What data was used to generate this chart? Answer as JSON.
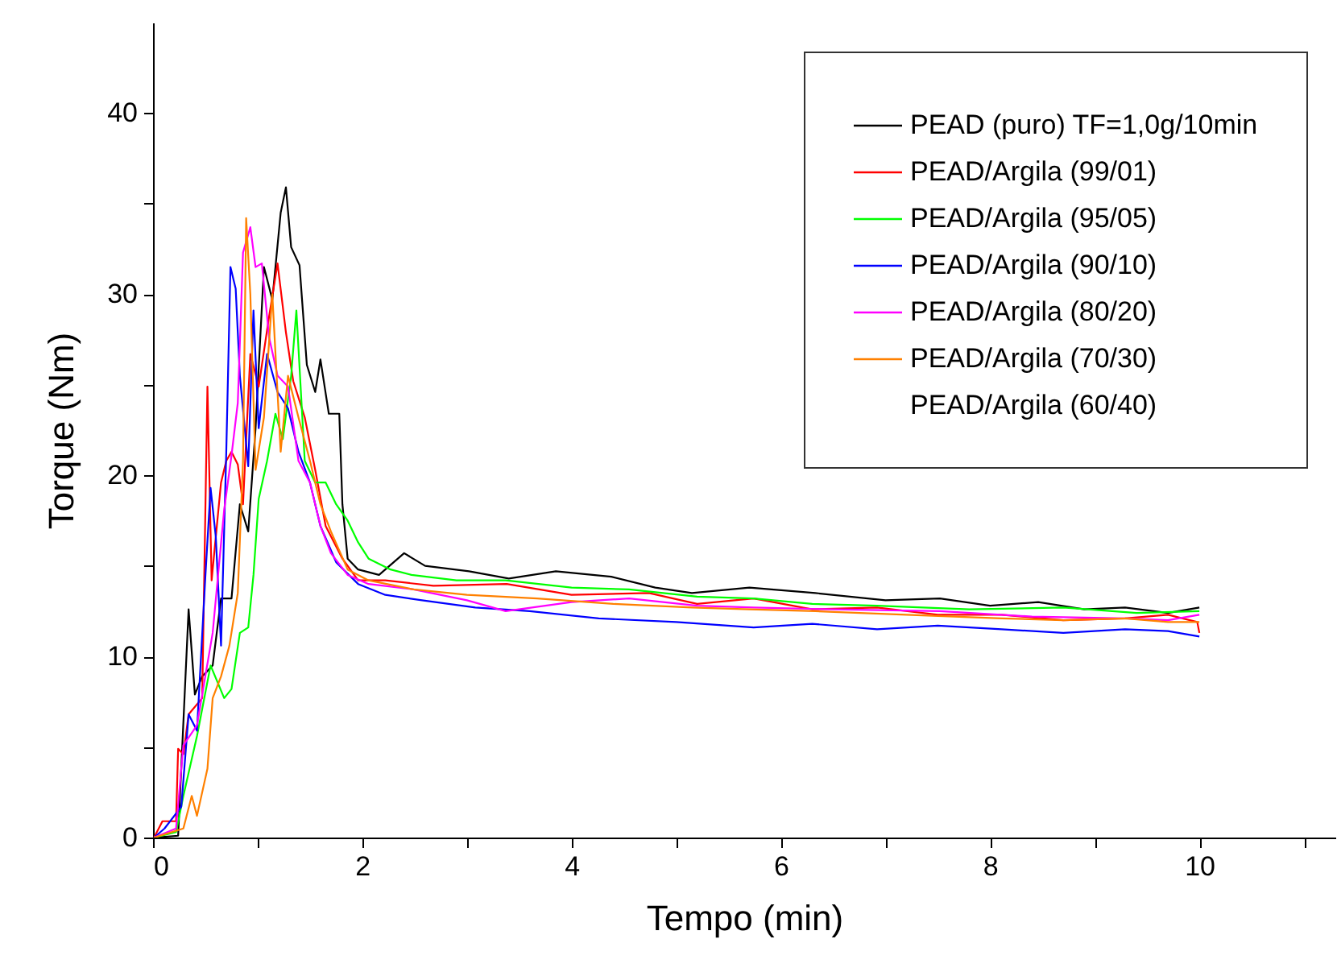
{
  "chart_data": {
    "type": "line",
    "xlabel": "Tempo (min)",
    "ylabel": "Torque (Nm)",
    "xlim": [
      0,
      11.3
    ],
    "ylim": [
      0,
      45
    ],
    "xticks": [
      0,
      {
        "value": 1,
        "label": null
      },
      2,
      {
        "value": 3,
        "label": null
      },
      4,
      {
        "value": 5,
        "label": null
      },
      6,
      {
        "value": 7,
        "label": null
      },
      8,
      {
        "value": 9,
        "label": null
      },
      10,
      {
        "value": 11,
        "label": null
      }
    ],
    "yticks": [
      0,
      {
        "value": 5,
        "label": null
      },
      10,
      {
        "value": 15,
        "label": null
      },
      20,
      {
        "value": 25,
        "label": null
      },
      30,
      {
        "value": 35,
        "label": null
      },
      40
    ],
    "grid": false,
    "legend": "top right",
    "line_style": "solid",
    "marker": "none",
    "series": [
      {
        "name": "PEAD (puro) TF=1,0g/10min",
        "color": "#000000",
        "x": [
          0.01,
          0.24,
          0.34,
          0.4,
          0.47,
          0.57,
          0.65,
          0.75,
          0.83,
          0.91,
          0.98,
          1.06,
          1.14,
          1.22,
          1.27,
          1.32,
          1.4,
          1.47,
          1.55,
          1.6,
          1.68,
          1.78,
          1.81,
          1.86,
          1.96,
          2.16,
          2.4,
          2.6,
          3.02,
          3.4,
          3.85,
          4.38,
          4.8,
          5.15,
          5.7,
          6.33,
          7.0,
          7.52,
          8.0,
          8.46,
          8.9,
          9.29,
          9.7,
          10.0
        ],
        "values": [
          0,
          0.1,
          12.6,
          7.9,
          8.9,
          9.5,
          13.2,
          13.2,
          18.4,
          16.9,
          22.6,
          31.5,
          29.7,
          34.5,
          35.9,
          32.6,
          31.6,
          26.1,
          24.6,
          26.4,
          23.4,
          23.4,
          18.4,
          15.4,
          14.8,
          14.5,
          15.7,
          15.0,
          14.7,
          14.3,
          14.7,
          14.4,
          13.8,
          13.5,
          13.8,
          13.5,
          13.1,
          13.2,
          12.8,
          13.0,
          12.6,
          12.7,
          12.4,
          12.7
        ]
      },
      {
        "name": "PEAD/Argila (99/01)",
        "color": "#ff0000",
        "x": [
          0.01,
          0.09,
          0.22,
          0.24,
          0.29,
          0.34,
          0.47,
          0.52,
          0.56,
          0.65,
          0.7,
          0.75,
          0.81,
          0.86,
          0.93,
          1.01,
          1.11,
          1.19,
          1.27,
          1.34,
          1.45,
          1.55,
          1.65,
          1.81,
          1.96,
          2.22,
          2.68,
          3.38,
          4.0,
          4.74,
          5.2,
          5.74,
          6.3,
          6.92,
          7.5,
          8.11,
          8.7,
          9.29,
          9.7,
          9.98,
          10.0
        ],
        "values": [
          0,
          0.9,
          0.9,
          4.9,
          4.6,
          6.8,
          7.7,
          24.9,
          14.2,
          19.6,
          20.8,
          21.3,
          20.6,
          18.4,
          26.7,
          24.9,
          28.8,
          31.7,
          27.9,
          25.2,
          23.2,
          20.3,
          17.2,
          15.4,
          14.2,
          14.2,
          13.9,
          14.0,
          13.4,
          13.5,
          12.9,
          13.2,
          12.6,
          12.7,
          12.3,
          12.3,
          12.0,
          12.1,
          12.3,
          11.9,
          11.3
        ]
      },
      {
        "name": "PEAD/Argila (95/05)",
        "color": "#00ff00",
        "x": [
          0.01,
          0.22,
          0.29,
          0.42,
          0.55,
          0.68,
          0.75,
          0.83,
          0.91,
          0.96,
          1.01,
          1.09,
          1.17,
          1.24,
          1.32,
          1.37,
          1.45,
          1.55,
          1.65,
          1.75,
          1.86,
          1.96,
          2.06,
          2.27,
          2.47,
          2.9,
          3.37,
          4.0,
          4.55,
          5.2,
          5.74,
          6.3,
          6.92,
          7.8,
          8.7,
          9.4,
          10.0
        ],
        "values": [
          0,
          0.3,
          2.3,
          5.6,
          9.5,
          7.7,
          8.2,
          11.3,
          11.6,
          14.5,
          18.7,
          20.8,
          23.4,
          22.0,
          25.5,
          29.1,
          20.8,
          19.6,
          19.6,
          18.4,
          17.5,
          16.3,
          15.4,
          14.8,
          14.5,
          14.2,
          14.2,
          13.8,
          13.7,
          13.3,
          13.2,
          12.9,
          12.8,
          12.6,
          12.7,
          12.4,
          12.5
        ]
      },
      {
        "name": "PEAD/Argila (90/10)",
        "color": "#0000ff",
        "x": [
          0.01,
          0.11,
          0.27,
          0.34,
          0.42,
          0.5,
          0.55,
          0.6,
          0.65,
          0.7,
          0.74,
          0.79,
          0.83,
          0.91,
          0.96,
          1.01,
          1.09,
          1.19,
          1.29,
          1.39,
          1.5,
          1.6,
          1.75,
          1.96,
          2.22,
          2.57,
          3.08,
          3.6,
          4.26,
          5.0,
          5.74,
          6.3,
          6.92,
          7.5,
          8.11,
          8.7,
          9.29,
          9.7,
          10.0
        ],
        "values": [
          0,
          0.5,
          1.7,
          6.8,
          5.9,
          14.4,
          19.3,
          16.6,
          10.6,
          21.3,
          31.5,
          30.3,
          25.5,
          20.5,
          29.1,
          22.6,
          26.7,
          24.6,
          23.7,
          21.3,
          19.6,
          17.2,
          15.2,
          14.0,
          13.4,
          13.1,
          12.7,
          12.5,
          12.1,
          11.9,
          11.6,
          11.8,
          11.5,
          11.7,
          11.5,
          11.3,
          11.5,
          11.4,
          11.1
        ]
      },
      {
        "name": "PEAD/Argila (80/20)",
        "color": "#ff00ff",
        "x": [
          0.01,
          0.22,
          0.29,
          0.42,
          0.57,
          0.68,
          0.75,
          0.81,
          0.86,
          0.93,
          0.98,
          1.04,
          1.11,
          1.19,
          1.29,
          1.39,
          1.5,
          1.6,
          1.7,
          1.86,
          2.06,
          2.49,
          3.0,
          3.37,
          4.0,
          4.55,
          5.2,
          5.74,
          6.5,
          7.52,
          8.4,
          9.29,
          9.7,
          10.0
        ],
        "values": [
          0,
          0.5,
          5.1,
          6.2,
          11.3,
          18.1,
          21.1,
          24.0,
          32.3,
          33.7,
          31.5,
          31.7,
          27.6,
          25.5,
          24.9,
          20.8,
          19.6,
          17.2,
          15.7,
          14.5,
          14.0,
          13.7,
          13.1,
          12.5,
          13.0,
          13.2,
          12.8,
          12.7,
          12.6,
          12.5,
          12.2,
          12.1,
          12.0,
          12.3
        ]
      },
      {
        "name": "PEAD/Argila (70/30)",
        "color": "#ff8000",
        "x": [
          0.01,
          0.29,
          0.37,
          0.42,
          0.52,
          0.57,
          0.65,
          0.73,
          0.81,
          0.86,
          0.89,
          0.93,
          0.98,
          1.06,
          1.14,
          1.22,
          1.29,
          1.39,
          1.5,
          1.6,
          1.7,
          1.86,
          2.06,
          2.49,
          3.0,
          3.67,
          4.4,
          5.15,
          5.7,
          6.33,
          7.2,
          8.11,
          8.7,
          9.29,
          9.7,
          10.0
        ],
        "values": [
          0,
          0.5,
          2.3,
          1.2,
          3.8,
          7.7,
          8.9,
          10.6,
          13.5,
          20.8,
          34.2,
          30.0,
          20.3,
          23.2,
          30.0,
          21.3,
          25.5,
          23.2,
          20.8,
          18.4,
          16.9,
          14.8,
          14.2,
          13.7,
          13.4,
          13.2,
          12.9,
          12.7,
          12.6,
          12.5,
          12.3,
          12.1,
          12.0,
          12.1,
          11.9,
          11.9
        ]
      },
      {
        "name": "PEAD/Argila (60/40)"
      }
    ]
  }
}
